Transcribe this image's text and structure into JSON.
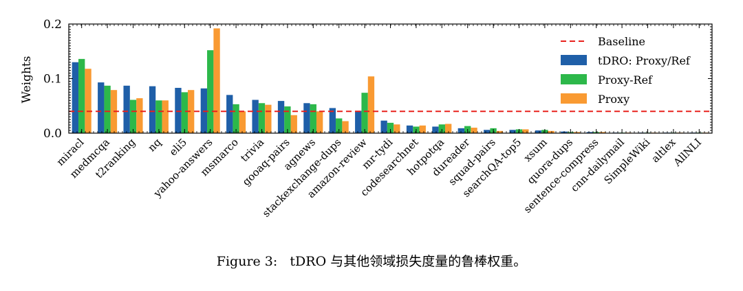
{
  "chart_data": {
    "type": "bar",
    "ylabel": "Weights",
    "xlabel": "",
    "ylim": [
      0,
      0.2
    ],
    "yticks": [
      "0.0",
      "0.1",
      "0.2"
    ],
    "ytick_values": [
      0.0,
      0.1,
      0.2
    ],
    "grid": false,
    "legend_position": "top-right",
    "baseline": {
      "name": "Baseline",
      "value": 0.04,
      "color": "#e8201c",
      "style": "dashed"
    },
    "categories": [
      "miracl",
      "medmcqa",
      "t2ranking",
      "nq",
      "eli5",
      "yahoo-answers",
      "msmarco",
      "trivia",
      "gooaq-pairs",
      "agnews",
      "stackexchange-dups",
      "amazon-review",
      "mr-tydi",
      "codesearchnet",
      "hotpotqa",
      "dureader",
      "squad-pairs",
      "searchQA-top5",
      "xsum",
      "quora-dups",
      "sentence-compress",
      "cnn-dailymail",
      "SimpleWiki",
      "altlex",
      "AllNLI"
    ],
    "series": [
      {
        "name": "tDRO: Proxy/Ref",
        "color": "#1f5fa8",
        "values": [
          0.13,
          0.093,
          0.087,
          0.086,
          0.083,
          0.082,
          0.07,
          0.061,
          0.059,
          0.055,
          0.046,
          0.041,
          0.023,
          0.014,
          0.012,
          0.009,
          0.006,
          0.006,
          0.005,
          0.003,
          0.002,
          0.001,
          0.001,
          0.001,
          0.001
        ]
      },
      {
        "name": "Proxy-Ref",
        "color": "#2db84a",
        "values": [
          0.136,
          0.087,
          0.061,
          0.06,
          0.075,
          0.152,
          0.053,
          0.055,
          0.049,
          0.053,
          0.027,
          0.074,
          0.019,
          0.012,
          0.016,
          0.013,
          0.009,
          0.007,
          0.006,
          0.002,
          0.002,
          0.001,
          0.001,
          0.001,
          0.001
        ]
      },
      {
        "name": "Proxy",
        "color": "#f99a32",
        "values": [
          0.118,
          0.079,
          0.064,
          0.06,
          0.079,
          0.192,
          0.04,
          0.052,
          0.033,
          0.04,
          0.022,
          0.104,
          0.016,
          0.014,
          0.017,
          0.01,
          0.004,
          0.007,
          0.004,
          0.002,
          0.002,
          0.001,
          0.001,
          0.001,
          0.001
        ]
      }
    ]
  },
  "caption": {
    "label": "Figure 3:",
    "text": "tDRO 与其他领域损失度量的鲁棒权重。"
  }
}
